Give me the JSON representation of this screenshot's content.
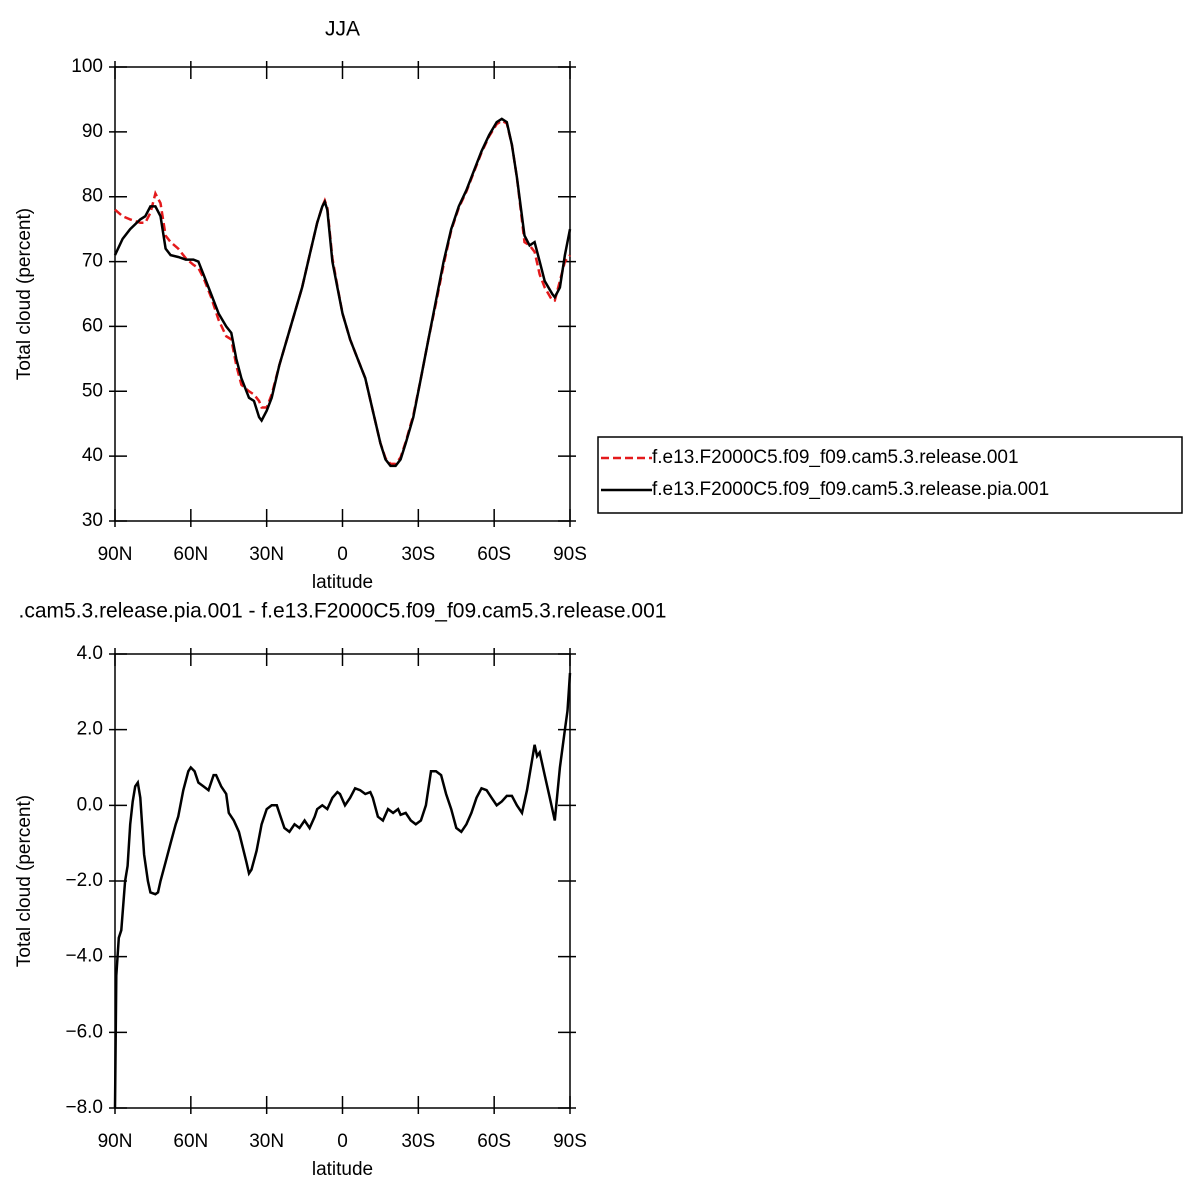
{
  "chart_data": [
    {
      "type": "line",
      "title": "JJA",
      "xlabel": "latitude",
      "ylabel": "Total cloud (percent)",
      "x": [
        90,
        87,
        84,
        80,
        78,
        76,
        74,
        72,
        70,
        68,
        65,
        62,
        59,
        57,
        55,
        52,
        49,
        46,
        44,
        42,
        40,
        37,
        35,
        33,
        32,
        30,
        28,
        25,
        22,
        19,
        16,
        13,
        10,
        8,
        7,
        6,
        4,
        2,
        0,
        -3,
        -6,
        -9,
        -12,
        -15,
        -17,
        -19,
        -21,
        -23,
        -25,
        -28,
        -31,
        -34,
        -37,
        -40,
        -43,
        -46,
        -49,
        -52,
        -55,
        -58,
        -61,
        -63,
        -65,
        -67,
        -69,
        -72,
        -74,
        -76,
        -78,
        -80,
        -83,
        -84,
        -86,
        -88,
        -90
      ],
      "series": [
        {
          "name": "f.e13.F2000C5.f09_f09.cam5.3.release.001",
          "color": "#e41a1c",
          "dash": true,
          "values": [
            78,
            77,
            76.5,
            76,
            76,
            77.5,
            80.5,
            79,
            74,
            73,
            72,
            70.5,
            69.5,
            69,
            67.5,
            64.5,
            61,
            58.5,
            58,
            54,
            51,
            50,
            49.5,
            48.5,
            47.5,
            47.5,
            49.5,
            54,
            58,
            62,
            66,
            71,
            76,
            78.5,
            79.4,
            78.3,
            70.5,
            66.2,
            62,
            58,
            55,
            52,
            47,
            42,
            39.7,
            38.8,
            38.8,
            39.8,
            42.2,
            46.3,
            52,
            58,
            63.6,
            69.5,
            74.8,
            78.3,
            80.8,
            83.8,
            86.8,
            89.3,
            91.2,
            91.7,
            91.3,
            88,
            83,
            73,
            72.5,
            71.5,
            68,
            66,
            64,
            64,
            67,
            70,
            71
          ]
        },
        {
          "name": "f.e13.F2000C5.f09_f09.cam5.3.release.pia.001",
          "color": "#000000",
          "dash": false,
          "values": [
            71,
            73.5,
            75,
            76.5,
            77,
            78.5,
            78.5,
            77,
            72,
            71,
            70.7,
            70.3,
            70.3,
            70,
            68,
            65,
            62,
            60,
            59,
            55,
            52,
            49,
            48.5,
            46,
            45.5,
            47,
            49,
            54,
            58,
            62,
            66,
            71,
            76,
            78.5,
            79.2,
            78,
            70,
            66,
            62,
            58,
            55,
            52,
            47,
            42,
            39.5,
            38.5,
            38.5,
            39.5,
            42,
            46,
            52,
            58,
            64,
            70,
            75,
            78.5,
            81,
            84,
            87,
            89.5,
            91.5,
            92,
            91.5,
            88,
            83,
            74,
            72.5,
            73,
            70,
            67,
            65,
            64.5,
            66,
            71,
            75
          ]
        }
      ],
      "xlim": [
        90,
        -90
      ],
      "xticks": [
        {
          "value": 90,
          "label": "90N"
        },
        {
          "value": 60,
          "label": "60N"
        },
        {
          "value": 30,
          "label": "30N"
        },
        0,
        {
          "value": -30,
          "label": "30S"
        },
        {
          "value": -60,
          "label": "60S"
        },
        {
          "value": -90,
          "label": "90S"
        }
      ],
      "ylim": [
        30,
        100
      ],
      "yticks": [
        30,
        40,
        50,
        60,
        70,
        80,
        90,
        100
      ],
      "legend": "right"
    },
    {
      "type": "line",
      "title": ".cam5.3.release.pia.001 - f.e13.F2000C5.f09_f09.cam5.3.release.001",
      "xlabel": "latitude",
      "ylabel": "Total cloud (percent)",
      "x": [
        90,
        89.5,
        88.5,
        87.5,
        86,
        85,
        84,
        83,
        82,
        81,
        80,
        78.5,
        77,
        76,
        74,
        73,
        72,
        70,
        68,
        66,
        65,
        63,
        61,
        60,
        58.5,
        57,
        55,
        53,
        51,
        50,
        48,
        46,
        45,
        43,
        41,
        38,
        37,
        36,
        34,
        32,
        30,
        28,
        26,
        25,
        23,
        21,
        19,
        17,
        15,
        13,
        11,
        10,
        8,
        6,
        4,
        2,
        1,
        -1,
        -3,
        -5,
        -7,
        -9,
        -11,
        -12,
        -14,
        -16,
        -18,
        -20,
        -22,
        -23,
        -25,
        -27,
        -29,
        -31,
        -33,
        -35,
        -37,
        -39,
        -41,
        -43,
        -45,
        -47,
        -49,
        -51,
        -53,
        -55,
        -57,
        -59,
        -61,
        -63,
        -65,
        -67,
        -69,
        -71,
        -73,
        -75,
        -76,
        -77,
        -78,
        -80,
        -82,
        -84,
        -86,
        -88,
        -89,
        -90
      ],
      "series": [
        {
          "name": null,
          "color": "#000000",
          "dash": false,
          "values": [
            -8,
            -4.5,
            -3.5,
            -3.3,
            -2,
            -1.6,
            -0.5,
            0.1,
            0.5,
            0.6,
            0.2,
            -1.3,
            -2,
            -2.3,
            -2.35,
            -2.3,
            -2,
            -1.5,
            -1,
            -0.5,
            -0.3,
            0.4,
            0.9,
            1.0,
            0.9,
            0.6,
            0.5,
            0.4,
            0.8,
            0.8,
            0.5,
            0.3,
            -0.2,
            -0.4,
            -0.7,
            -1.5,
            -1.8,
            -1.7,
            -1.2,
            -0.5,
            -0.1,
            0.0,
            0.0,
            -0.2,
            -0.6,
            -0.7,
            -0.5,
            -0.6,
            -0.4,
            -0.6,
            -0.3,
            -0.1,
            0.0,
            -0.1,
            0.2,
            0.35,
            0.3,
            0.0,
            0.2,
            0.45,
            0.4,
            0.3,
            0.35,
            0.2,
            -0.3,
            -0.4,
            -0.1,
            -0.2,
            -0.1,
            -0.25,
            -0.2,
            -0.4,
            -0.5,
            -0.4,
            0.0,
            0.9,
            0.9,
            0.8,
            0.3,
            -0.1,
            -0.6,
            -0.7,
            -0.5,
            -0.2,
            0.2,
            0.45,
            0.4,
            0.2,
            0.0,
            0.1,
            0.25,
            0.25,
            0.0,
            -0.2,
            0.4,
            1.2,
            1.6,
            1.3,
            1.4,
            0.8,
            0.2,
            -0.4,
            1.0,
            2.0,
            2.5,
            3.5
          ]
        }
      ],
      "xlim": [
        90,
        -90
      ],
      "xticks": [
        {
          "value": 90,
          "label": "90N"
        },
        {
          "value": 60,
          "label": "60N"
        },
        {
          "value": 30,
          "label": "30N"
        },
        0,
        {
          "value": -30,
          "label": "30S"
        },
        {
          "value": -60,
          "label": "60S"
        },
        {
          "value": -90,
          "label": "90S"
        }
      ],
      "ylim": [
        -8,
        4
      ],
      "yticks": [
        {
          "value": -8,
          "label": "−8.0"
        },
        {
          "value": -6,
          "label": "−6.0"
        },
        {
          "value": -4,
          "label": "−4.0"
        },
        {
          "value": -2,
          "label": "−2.0"
        },
        {
          "value": 0,
          "label": "0.0"
        },
        {
          "value": 2,
          "label": "2.0"
        },
        {
          "value": 4,
          "label": "4.0"
        }
      ]
    }
  ]
}
